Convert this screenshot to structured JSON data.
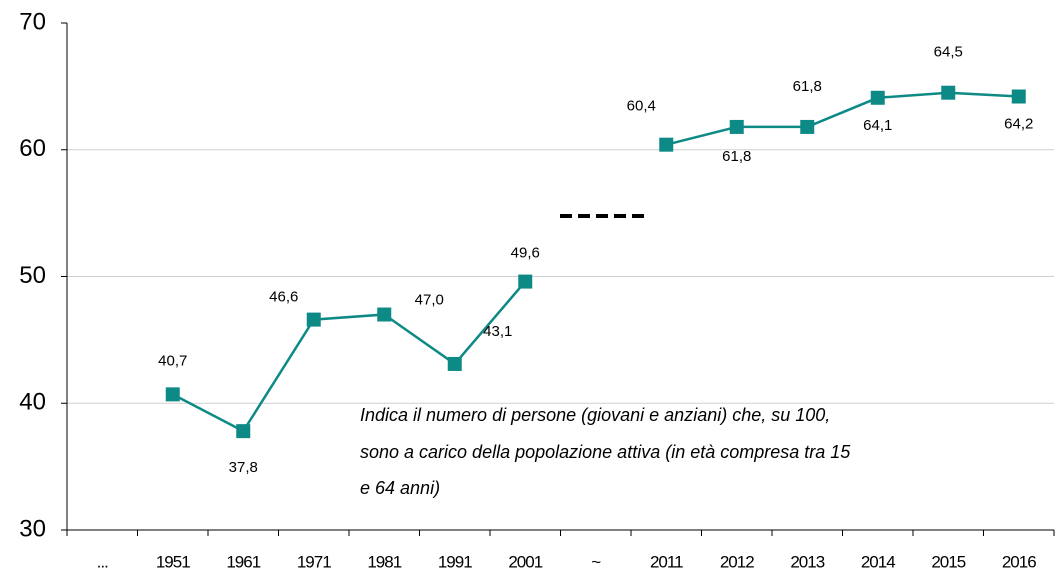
{
  "chart_data": {
    "type": "line",
    "categories": [
      "...",
      "1951",
      "1961",
      "1971",
      "1981",
      "1991",
      "2001",
      "~",
      "2011",
      "2012",
      "2013",
      "2014",
      "2015",
      "2016"
    ],
    "series": [
      {
        "color": "#0e8a86",
        "values": [
          null,
          40.7,
          37.8,
          46.6,
          47.0,
          43.1,
          49.6,
          null,
          60.4,
          61.8,
          61.8,
          64.1,
          64.5,
          64.2
        ],
        "value_labels": [
          null,
          "40,7",
          "37,8",
          "46,6",
          "47,0",
          "43,1",
          "49,6",
          null,
          "60,4",
          "61,8",
          "61,8",
          "64,1",
          "64,5",
          "64,2"
        ]
      }
    ],
    "ylim": [
      30,
      70
    ],
    "yticks": [
      30,
      40,
      50,
      60,
      70
    ],
    "grid": true,
    "annotation": [
      "Indica il numero di persone (giovani e anziani) che, su 100,",
      "sono a carico della popolazione attiva (in età compresa tra 15",
      "e 64 anni)"
    ]
  }
}
